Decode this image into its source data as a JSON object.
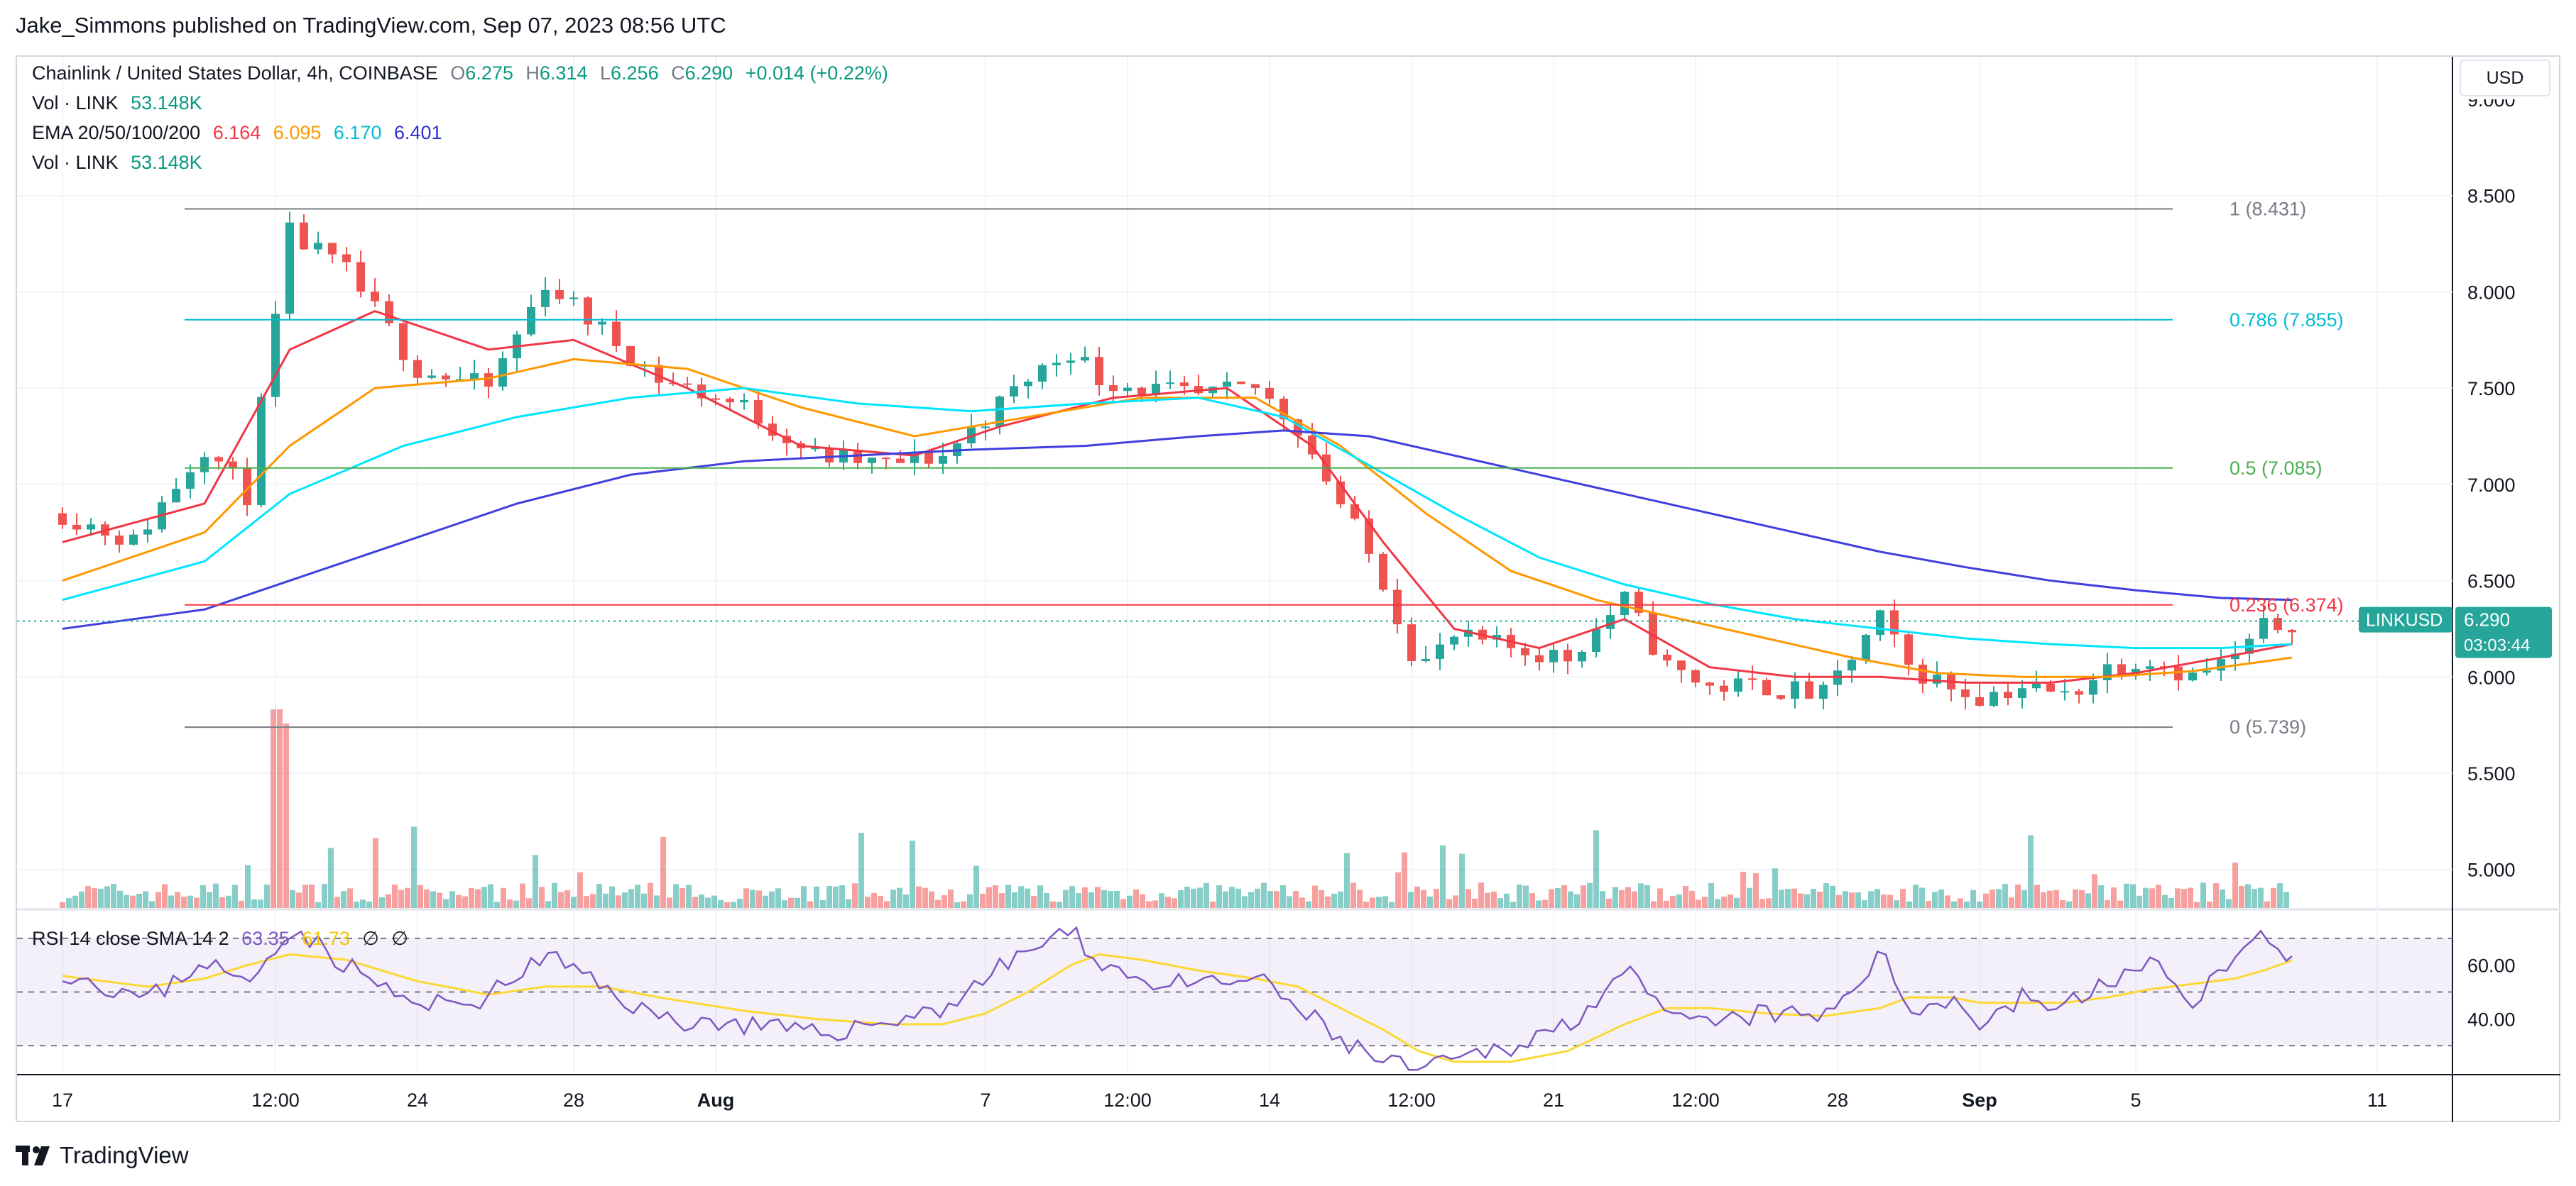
{
  "header": {
    "published": "Jake_Simmons published on TradingView.com, Sep 07, 2023 08:56 UTC"
  },
  "legend": {
    "symbol": "Chainlink / United States Dollar, 4h, COINBASE",
    "o_label": "O",
    "o": "6.275",
    "h_label": "H",
    "h": "6.314",
    "l_label": "L",
    "l": "6.256",
    "c_label": "C",
    "c": "6.290",
    "change": "+0.014 (+0.22%)",
    "vol_label": "Vol · LINK",
    "vol": "53.148K",
    "ema_label": "EMA 20/50/100/200",
    "ema20": "6.164",
    "ema50": "6.095",
    "ema100": "6.170",
    "ema200": "6.401",
    "vol2_label": "Vol · LINK",
    "vol2": "53.148K"
  },
  "rsi_legend": {
    "label": "RSI 14 close SMA 14 2",
    "rsi": "63.35",
    "sma": "61.73",
    "x1": "∅",
    "x2": "∅"
  },
  "currency_button": "USD",
  "price_badge": {
    "symbol": "LINKUSD",
    "price": "6.290",
    "countdown": "03:03:44"
  },
  "footer": {
    "brand": "TradingView"
  },
  "colors": {
    "up": "#26a69a",
    "down": "#ef5350",
    "ema20": "#f23645",
    "ema50": "#ff9800",
    "ema100": "#00e5ff",
    "ema200": "#3f3fe0",
    "rsi": "#7e57c2",
    "rsi_sma": "#fdd835"
  },
  "chart_data": {
    "type": "line",
    "title": "Chainlink / United States Dollar, 4h, COINBASE",
    "xlabel": "",
    "ylabel": "USD",
    "ylim": [
      4.8,
      9.0
    ],
    "y_ticks": [
      "5.000",
      "5.500",
      "6.000",
      "6.500",
      "7.000",
      "7.500",
      "8.000",
      "8.500"
    ],
    "x_ticks": [
      {
        "label": "17",
        "day": 0
      },
      {
        "label": "12:00",
        "day": 1.5
      },
      {
        "label": "24",
        "day": 2.5
      },
      {
        "label": "28",
        "day": 3.6
      },
      {
        "label": "Aug",
        "day": 4.6
      },
      {
        "label": "7",
        "day": 6.5
      },
      {
        "label": "12:00",
        "day": 7.5
      },
      {
        "label": "14",
        "day": 8.5
      },
      {
        "label": "12:00",
        "day": 9.5
      },
      {
        "label": "21",
        "day": 10.5
      },
      {
        "label": "12:00",
        "day": 11.5
      },
      {
        "label": "28",
        "day": 12.5
      },
      {
        "label": "Sep",
        "day": 13.5
      },
      {
        "label": "5",
        "day": 14.6
      },
      {
        "label": "11",
        "day": 16.3
      }
    ],
    "fib_levels": [
      {
        "ratio": "1",
        "price": 8.431,
        "label": "1 (8.431)",
        "color": "#787b86"
      },
      {
        "ratio": "0.786",
        "price": 7.855,
        "label": "0.786 (7.855)",
        "color": "#00bcd4"
      },
      {
        "ratio": "0.5",
        "price": 7.085,
        "label": "0.5 (7.085)",
        "color": "#4caf50"
      },
      {
        "ratio": "0.236",
        "price": 6.374,
        "label": "0.236 (6.374)",
        "color": "#f23645"
      },
      {
        "ratio": "0",
        "price": 5.739,
        "label": "0 (5.739)",
        "color": "#787b86"
      }
    ],
    "series": [
      {
        "name": "LINKUSD",
        "x": [
          0.0,
          0.5,
          1.0,
          1.3,
          1.6,
          2.0,
          2.5,
          3.0,
          3.4,
          3.8,
          4.2,
          4.8,
          5.3,
          5.8,
          6.2,
          6.5,
          6.8,
          7.1,
          7.3,
          7.6,
          8.0,
          8.4,
          8.7,
          9.0,
          9.3,
          9.55,
          9.8,
          10.2,
          10.6,
          11.0,
          11.3,
          11.6,
          12.0,
          12.4,
          12.8,
          13.0,
          13.3,
          13.5,
          13.8,
          14.1,
          14.4,
          14.7,
          15.0,
          15.3,
          15.5,
          15.7
        ],
        "values": [
          6.85,
          6.7,
          7.2,
          6.95,
          8.3,
          8.1,
          7.6,
          7.5,
          8.05,
          7.8,
          7.55,
          7.4,
          7.15,
          7.1,
          7.15,
          7.35,
          7.55,
          7.7,
          7.55,
          7.5,
          7.45,
          7.5,
          7.3,
          6.9,
          6.5,
          6.05,
          6.2,
          6.15,
          6.1,
          6.4,
          6.05,
          5.95,
          5.95,
          5.9,
          6.3,
          6.05,
          5.95,
          5.9,
          5.95,
          5.9,
          6.05,
          6.1,
          6.0,
          6.1,
          6.25,
          6.29
        ]
      },
      {
        "name": "EMA 20",
        "x": [
          0.0,
          1.0,
          1.6,
          2.2,
          3.0,
          3.6,
          4.4,
          5.2,
          6.0,
          6.6,
          7.4,
          8.2,
          8.8,
          9.3,
          9.8,
          10.4,
          11.0,
          11.6,
          12.2,
          12.8,
          13.4,
          14.0,
          14.6,
          15.2,
          15.7
        ],
        "values": [
          6.7,
          6.9,
          7.7,
          7.9,
          7.7,
          7.75,
          7.5,
          7.2,
          7.15,
          7.3,
          7.45,
          7.5,
          7.2,
          6.7,
          6.25,
          6.15,
          6.3,
          6.05,
          6.0,
          6.0,
          5.97,
          5.97,
          6.02,
          6.1,
          6.17
        ]
      },
      {
        "name": "EMA 50",
        "x": [
          0.0,
          1.0,
          1.6,
          2.2,
          3.0,
          3.6,
          4.4,
          5.2,
          6.0,
          6.8,
          7.6,
          8.4,
          9.0,
          9.6,
          10.2,
          10.8,
          11.4,
          12.0,
          12.6,
          13.2,
          13.8,
          14.4,
          15.0,
          15.7
        ],
        "values": [
          6.5,
          6.75,
          7.2,
          7.5,
          7.55,
          7.65,
          7.6,
          7.4,
          7.25,
          7.35,
          7.45,
          7.45,
          7.2,
          6.85,
          6.55,
          6.4,
          6.3,
          6.2,
          6.1,
          6.02,
          6.0,
          6.0,
          6.03,
          6.1
        ]
      },
      {
        "name": "EMA 100",
        "x": [
          0.0,
          1.0,
          1.6,
          2.4,
          3.2,
          4.0,
          4.8,
          5.6,
          6.4,
          7.2,
          8.0,
          8.6,
          9.2,
          9.8,
          10.4,
          11.0,
          11.6,
          12.2,
          12.8,
          13.4,
          14.0,
          14.6,
          15.2,
          15.7
        ],
        "values": [
          6.4,
          6.6,
          6.95,
          7.2,
          7.35,
          7.45,
          7.5,
          7.42,
          7.38,
          7.42,
          7.45,
          7.35,
          7.1,
          6.85,
          6.62,
          6.48,
          6.38,
          6.3,
          6.25,
          6.2,
          6.17,
          6.15,
          6.15,
          6.17
        ]
      },
      {
        "name": "EMA 200",
        "x": [
          0.0,
          1.0,
          1.6,
          2.4,
          3.2,
          4.0,
          4.8,
          5.6,
          6.4,
          7.2,
          8.0,
          8.6,
          9.2,
          9.8,
          10.4,
          11.0,
          11.6,
          12.2,
          12.8,
          13.4,
          14.0,
          14.6,
          15.2,
          15.7
        ],
        "values": [
          6.25,
          6.35,
          6.5,
          6.7,
          6.9,
          7.05,
          7.12,
          7.15,
          7.18,
          7.2,
          7.25,
          7.28,
          7.25,
          7.15,
          7.05,
          6.95,
          6.85,
          6.75,
          6.65,
          6.57,
          6.5,
          6.45,
          6.41,
          6.4
        ]
      }
    ],
    "volume": {
      "name": "Vol · LINK",
      "last": "53.148K"
    },
    "rsi": {
      "name": "RSI 14 close SMA 14 2",
      "ylim": [
        20,
        80
      ],
      "y_ticks": [
        "40.00",
        "60.00"
      ],
      "bands": [
        30,
        50,
        70
      ],
      "x": [
        0.0,
        0.6,
        1.0,
        1.3,
        1.6,
        2.0,
        2.5,
        3.0,
        3.4,
        3.8,
        4.2,
        4.8,
        5.3,
        5.8,
        6.2,
        6.5,
        6.8,
        7.1,
        7.3,
        7.6,
        8.0,
        8.4,
        8.7,
        9.0,
        9.3,
        9.55,
        9.8,
        10.2,
        10.6,
        11.0,
        11.3,
        11.6,
        12.0,
        12.4,
        12.8,
        13.0,
        13.3,
        13.5,
        13.8,
        14.1,
        14.4,
        14.7,
        15.0,
        15.3,
        15.5,
        15.7
      ],
      "values": [
        58,
        47,
        62,
        52,
        75,
        60,
        44,
        48,
        64,
        52,
        40,
        38,
        34,
        39,
        44,
        55,
        66,
        72,
        62,
        54,
        52,
        55,
        44,
        32,
        24,
        20,
        24,
        30,
        38,
        58,
        40,
        38,
        42,
        40,
        64,
        44,
        48,
        38,
        48,
        44,
        54,
        60,
        48,
        62,
        72,
        63.35
      ],
      "sma_values": [
        56,
        52,
        55,
        60,
        64,
        62,
        54,
        49,
        52,
        52,
        48,
        43,
        40,
        38,
        38,
        42,
        50,
        60,
        64,
        62,
        58,
        55,
        52,
        44,
        36,
        28,
        24,
        24,
        28,
        38,
        44,
        44,
        42,
        41,
        44,
        48,
        48,
        46,
        46,
        46,
        48,
        51,
        53,
        55,
        58,
        61.73
      ]
    }
  }
}
